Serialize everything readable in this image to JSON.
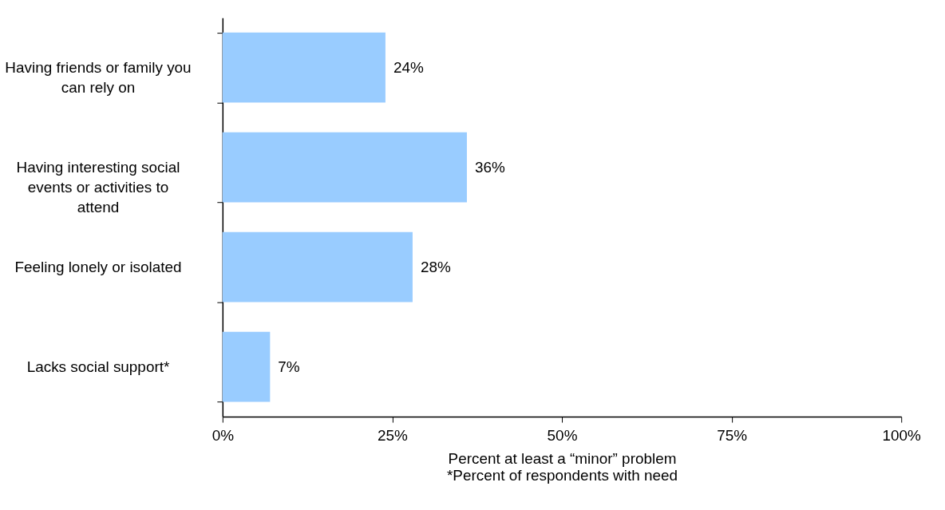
{
  "chart_data": {
    "type": "bar",
    "orientation": "horizontal",
    "categories": [
      "Having friends or family you can rely on",
      "Having interesting social events or activities to attend",
      "Feeling lonely or isolated",
      "Lacks social support*"
    ],
    "values": [
      24,
      36,
      28,
      7
    ],
    "value_labels": [
      "24%",
      "36%",
      "28%",
      "7%"
    ],
    "color": "#99ccff",
    "xlim": [
      0,
      100
    ],
    "xticks": [
      {
        "value": 0,
        "label": "0%"
      },
      {
        "value": 25,
        "label": "25%"
      },
      {
        "value": 50,
        "label": "50%"
      },
      {
        "value": 75,
        "label": "75%"
      },
      {
        "value": 100,
        "label": "100%"
      }
    ],
    "xlabel": "Percent at least a “minor” problem",
    "annotations": [
      "*Percent of respondents with need"
    ],
    "grid": false
  }
}
